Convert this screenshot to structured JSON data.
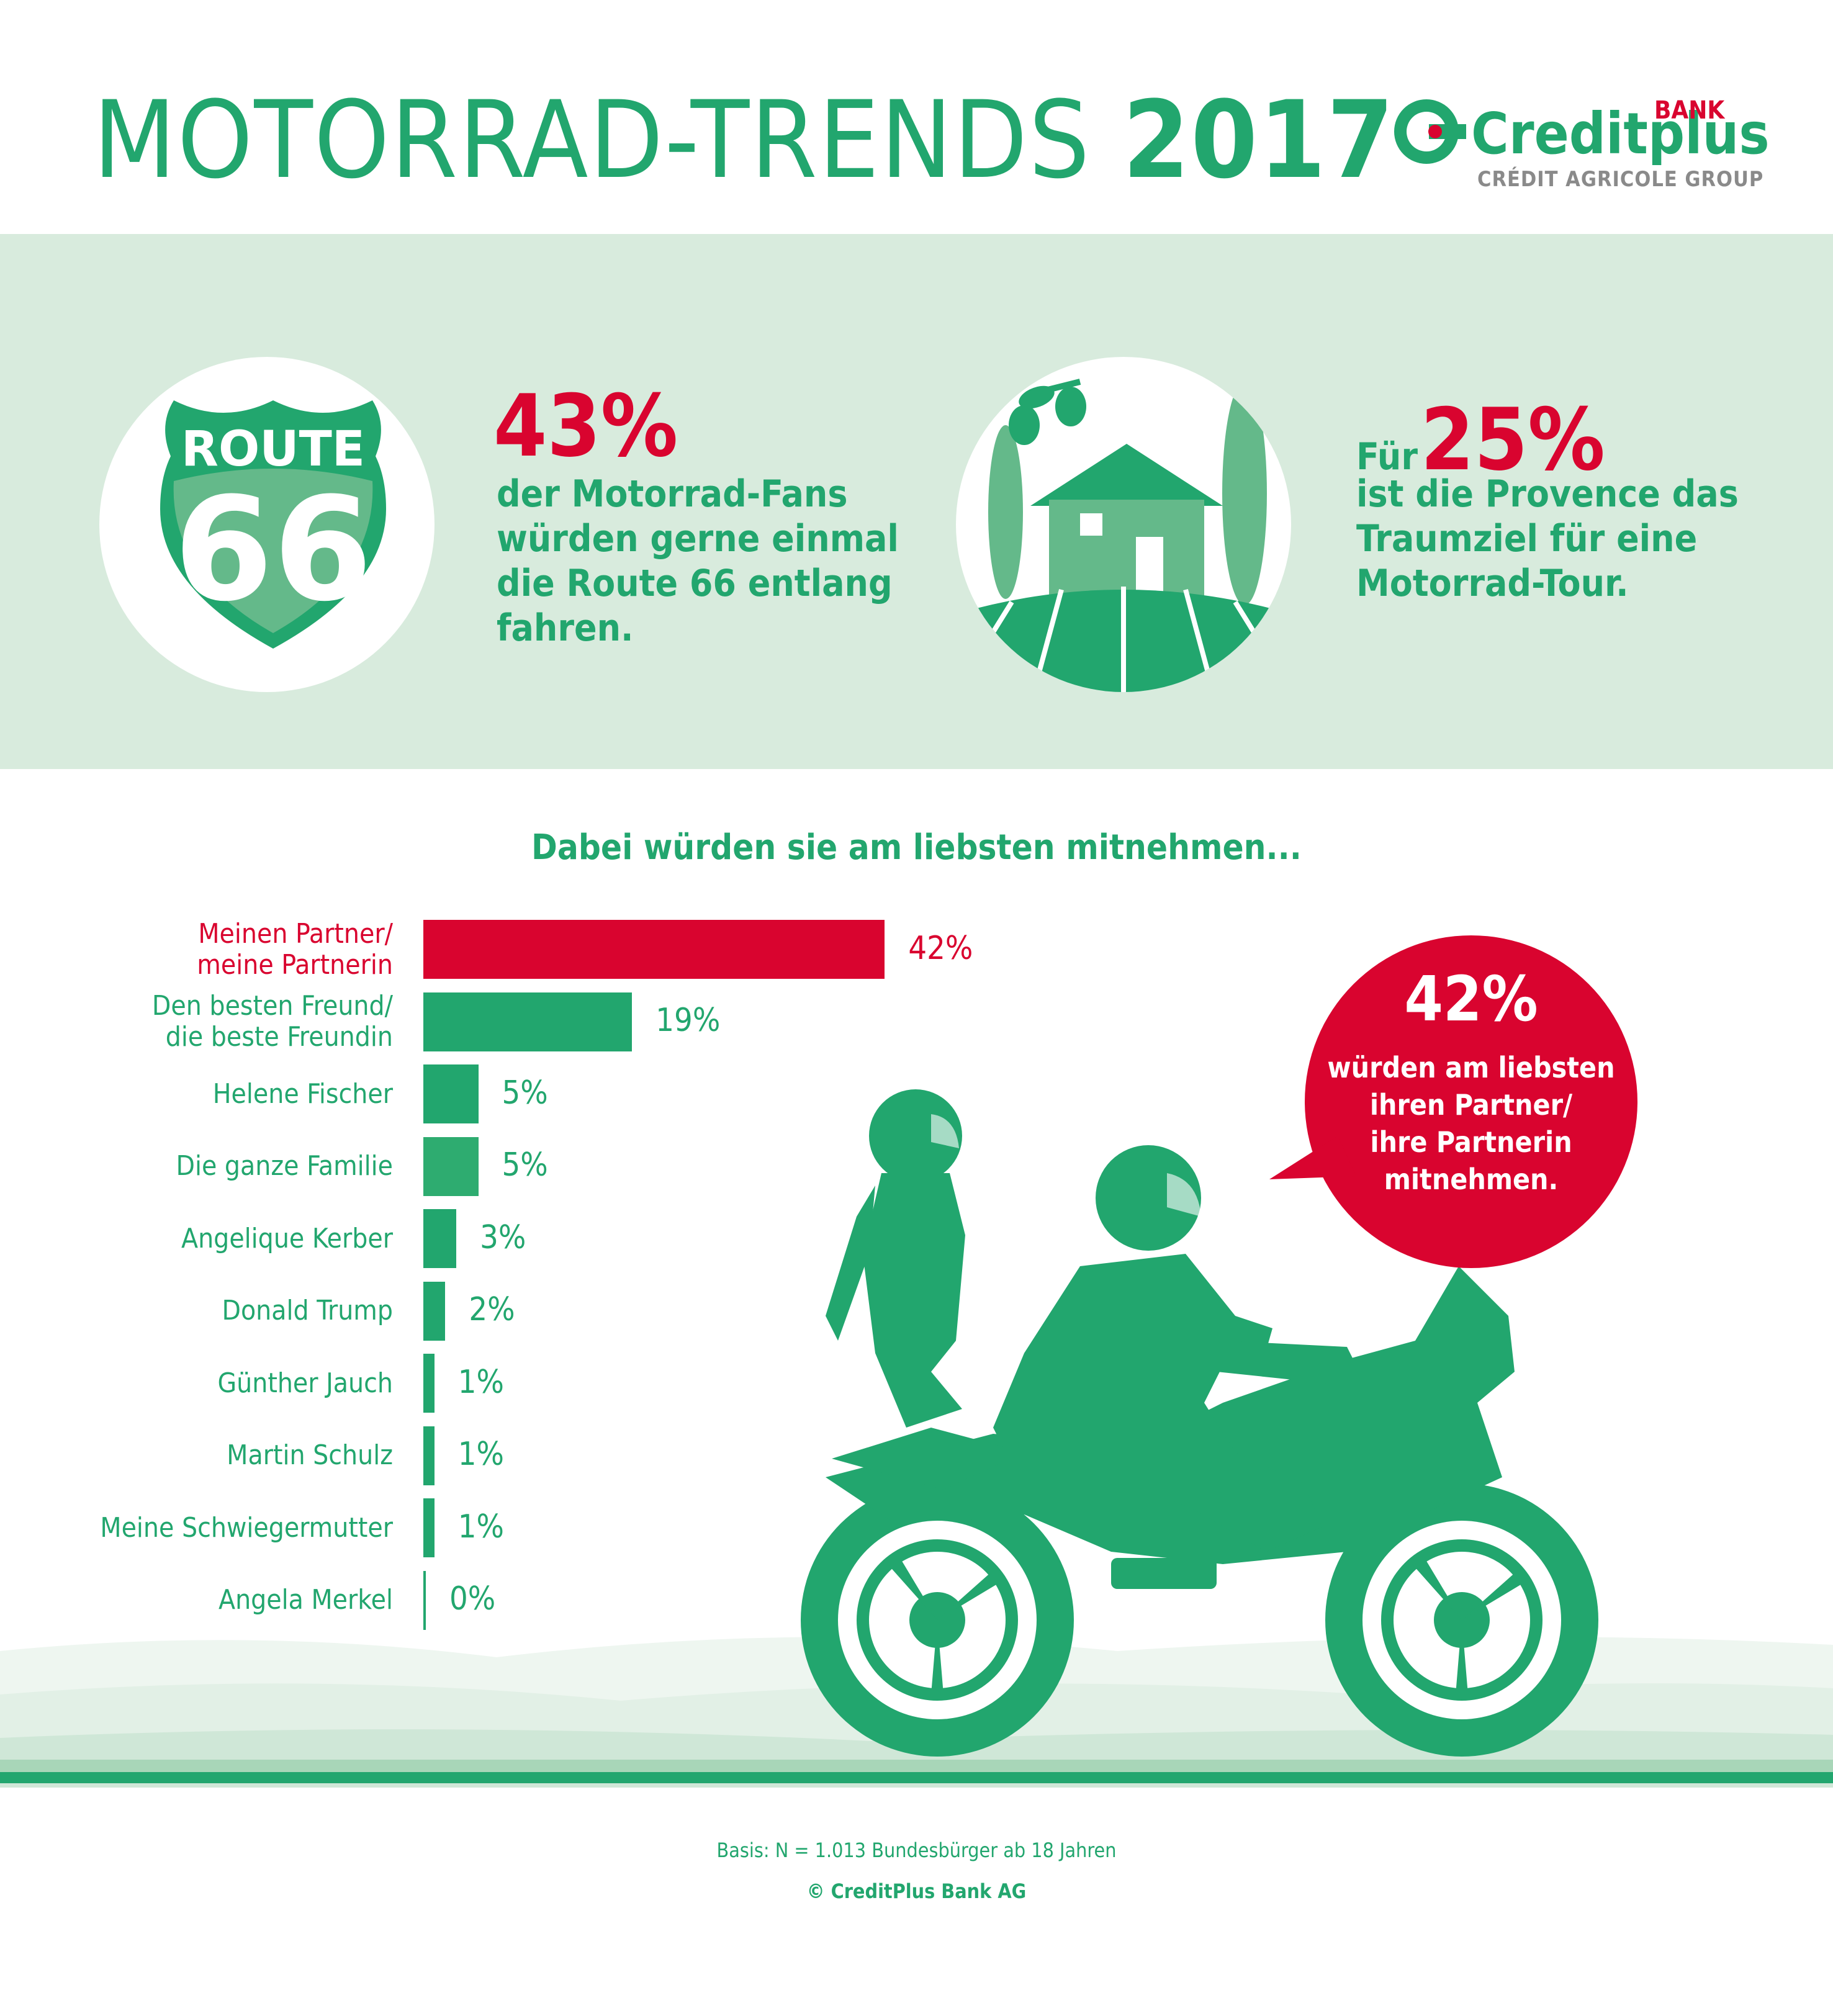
{
  "header": {
    "title_main": "MOTORRAD-TRENDS",
    "title_year": "2017",
    "logo": {
      "name": "Creditplus",
      "bank": "BANK",
      "group": "CRÉDIT AGRICOLE GROUP"
    }
  },
  "stats": [
    {
      "icon": "route-66-shield-icon",
      "shield_top": "ROUTE",
      "shield_number": "66",
      "value": "43%",
      "lines": [
        "der Motorrad-Fans",
        "würden gerne einmal",
        "die Route 66 entlang",
        "fahren."
      ]
    },
    {
      "icon": "provence-house-icon",
      "prefix": "Für",
      "value": "25%",
      "lines": [
        "ist die Provence das",
        "Traumziel für eine",
        "Motorrad-Tour."
      ]
    }
  ],
  "bubble": {
    "value": "42%",
    "lines": [
      "würden am liebsten",
      "ihren Partner/",
      "ihre Partnerin",
      "mitnehmen."
    ]
  },
  "chart_data": {
    "type": "bar",
    "orientation": "horizontal",
    "title": "Dabei würden sie am liebsten mitnehmen...",
    "categories": [
      [
        "Meinen Partner/",
        "meine Partnerin"
      ],
      [
        "Den besten Freund/",
        "die beste Freundin"
      ],
      [
        "Helene Fischer"
      ],
      [
        "Die ganze Familie"
      ],
      [
        "Angelique Kerber"
      ],
      [
        "Donald Trump"
      ],
      [
        "Günther Jauch"
      ],
      [
        "Martin Schulz"
      ],
      [
        "Meine Schwiegermutter"
      ],
      [
        "Angela Merkel"
      ]
    ],
    "values": [
      42,
      19,
      5,
      5,
      3,
      2,
      1,
      1,
      1,
      0
    ],
    "value_labels": [
      "42%",
      "19%",
      "5%",
      "5%",
      "3%",
      "2%",
      "1%",
      "1%",
      "1%",
      "0%"
    ],
    "unit": "%",
    "highlight_index": 0,
    "colors": {
      "highlight": "#d9042f",
      "default": "#22a66e",
      "alt": "#2eac70"
    },
    "legend": "none",
    "grid": false
  },
  "footer": {
    "basis": "Basis: N = 1.013 Bundesbürger ab 18 Jahren",
    "copyright": "© CreditPlus Bank AG"
  },
  "colors": {
    "green": "#22a66e",
    "red": "#d9042f",
    "band": "#d8ebdd",
    "light_green": "#64b98a"
  }
}
